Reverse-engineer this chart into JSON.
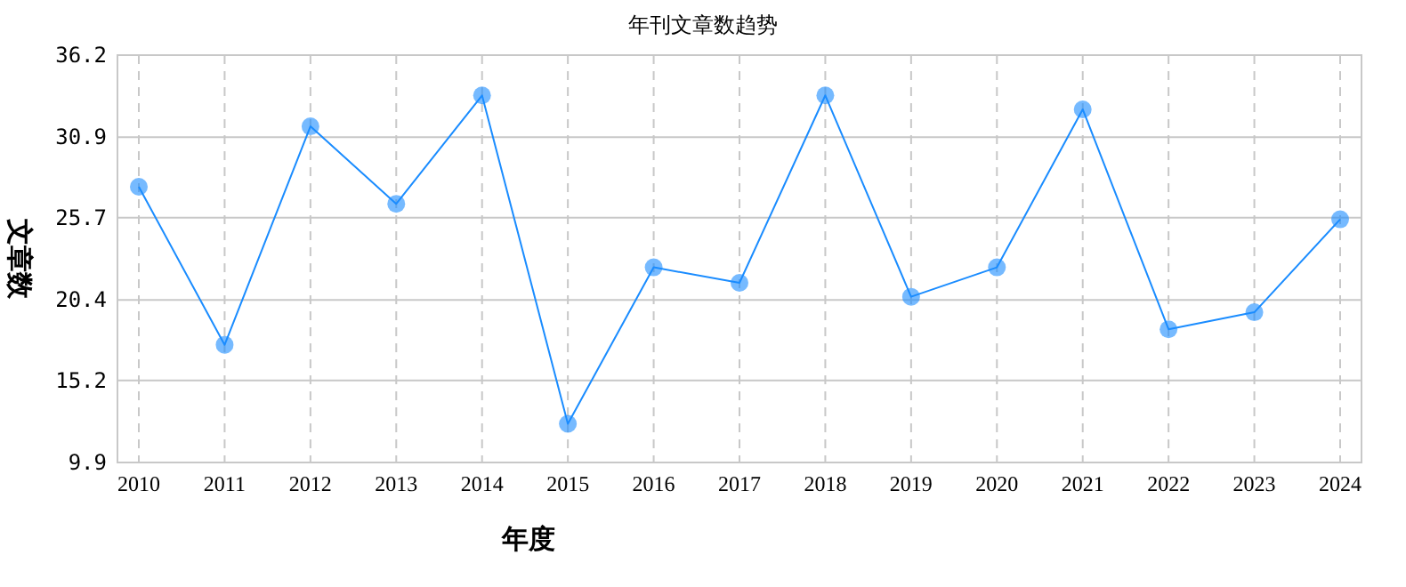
{
  "chart_data": {
    "type": "line",
    "title": "年刊文章数趋势",
    "xlabel": "年度",
    "ylabel": "文章数",
    "categories": [
      "2010",
      "2011",
      "2012",
      "2013",
      "2014",
      "2015",
      "2016",
      "2017",
      "2018",
      "2019",
      "2020",
      "2021",
      "2022",
      "2023",
      "2024"
    ],
    "series": [
      {
        "color": "#1a8cff",
        "values": [
          27.7,
          17.5,
          31.6,
          26.6,
          33.6,
          12.4,
          22.5,
          21.5,
          33.6,
          20.6,
          22.5,
          32.7,
          18.5,
          19.6,
          25.6
        ]
      }
    ],
    "ylim": [
      9.9,
      36.2
    ],
    "yticks": [
      9.9,
      15.2,
      20.4,
      25.7,
      30.9,
      36.2
    ],
    "grid": true,
    "marker": "circle",
    "line_style": "solid"
  }
}
